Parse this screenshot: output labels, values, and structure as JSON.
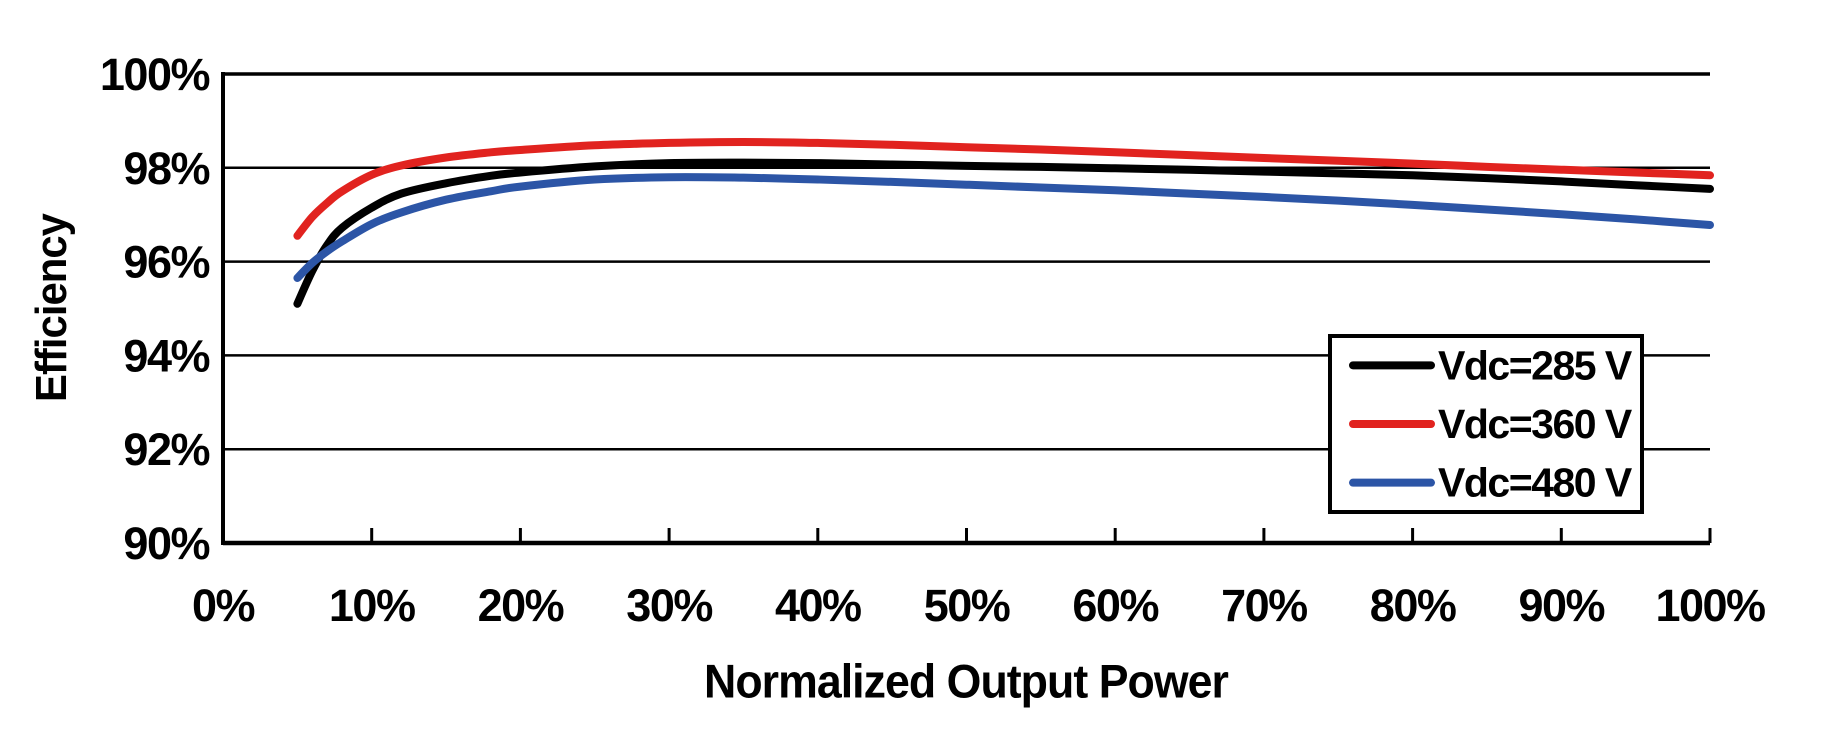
{
  "background_color": "#ffffff",
  "chart_data": {
    "type": "line",
    "title": "",
    "xlabel": "Normalized Output Power",
    "ylabel": "Efficiency",
    "xlim": [
      0,
      100
    ],
    "ylim": [
      90,
      100
    ],
    "x_unit": "percent of rated output power",
    "y_unit": "percent efficiency",
    "x_tick_values": [
      0,
      10,
      20,
      30,
      40,
      50,
      60,
      70,
      80,
      90,
      100
    ],
    "x_tick_labels": [
      "0%",
      "10%",
      "20%",
      "30%",
      "40%",
      "50%",
      "60%",
      "70%",
      "80%",
      "90%",
      "100%"
    ],
    "y_tick_values": [
      90,
      92,
      94,
      96,
      98,
      100
    ],
    "y_tick_labels": [
      "90%",
      "92%",
      "94%",
      "96%",
      "98%",
      "100%"
    ],
    "grid": "horizontal gridlines on, vertical off",
    "legend_position": "inside right, boxed",
    "axis_color": "#000000",
    "x": [
      5,
      6,
      7,
      8,
      10,
      12,
      15,
      18,
      20,
      25,
      30,
      35,
      40,
      45,
      50,
      55,
      60,
      65,
      70,
      75,
      80,
      85,
      90,
      95,
      100
    ],
    "series": [
      {
        "name": "Vdc=285 V",
        "color": "#000000",
        "values": [
          95.1,
          95.8,
          96.35,
          96.72,
          97.15,
          97.45,
          97.67,
          97.83,
          97.9,
          98.03,
          98.1,
          98.11,
          98.1,
          98.07,
          98.04,
          98.02,
          97.99,
          97.96,
          97.92,
          97.88,
          97.84,
          97.78,
          97.71,
          97.63,
          97.55
        ]
      },
      {
        "name": "Vdc=360 V",
        "color": "#e1231f",
        "values": [
          96.55,
          96.95,
          97.25,
          97.5,
          97.85,
          98.05,
          98.22,
          98.33,
          98.38,
          98.48,
          98.53,
          98.55,
          98.53,
          98.49,
          98.44,
          98.39,
          98.33,
          98.27,
          98.21,
          98.15,
          98.09,
          98.02,
          97.96,
          97.9,
          97.84
        ]
      },
      {
        "name": "Vdc=480 V",
        "color": "#2c55a6",
        "values": [
          95.65,
          95.97,
          96.22,
          96.43,
          96.8,
          97.05,
          97.32,
          97.5,
          97.6,
          97.75,
          97.8,
          97.79,
          97.75,
          97.7,
          97.64,
          97.58,
          97.52,
          97.45,
          97.38,
          97.3,
          97.21,
          97.11,
          97.01,
          96.9,
          96.78
        ]
      }
    ]
  }
}
